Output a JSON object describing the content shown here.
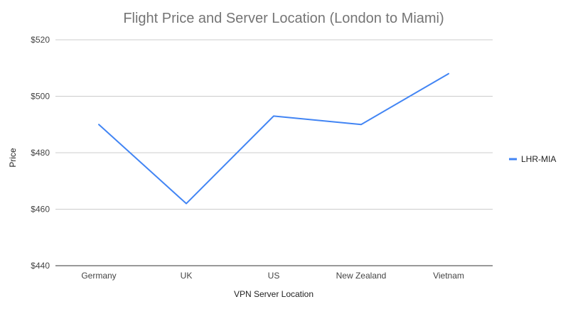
{
  "chart_data": {
    "type": "line",
    "title": "Flight Price and Server Location (London to Miami)",
    "xlabel": "VPN Server Location",
    "ylabel": "Price",
    "categories": [
      "Germany",
      "UK",
      "US",
      "New Zealand",
      "Vietnam"
    ],
    "series": [
      {
        "name": "LHR-MIA",
        "values": [
          490,
          462,
          493,
          490,
          508
        ],
        "color": "#4285f4"
      }
    ],
    "ylim": [
      440,
      520
    ],
    "yticks": [
      440,
      460,
      480,
      500,
      520
    ],
    "ytick_labels": [
      "$440",
      "$460",
      "$480",
      "$500",
      "$520"
    ],
    "grid": true,
    "legend_position": "right"
  }
}
